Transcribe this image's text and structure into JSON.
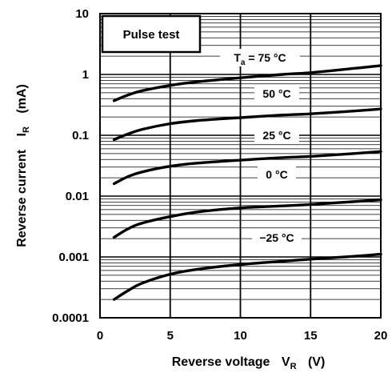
{
  "chart_data": {
    "type": "line",
    "xlabel": "Reverse voltage",
    "xlabel_symbol": "V",
    "xlabel_sub": "R",
    "xlabel_unit": "(V)",
    "ylabel": "Reverse current",
    "ylabel_symbol": "I",
    "ylabel_sub": "R",
    "ylabel_unit": "(mA)",
    "xlim": [
      0,
      20
    ],
    "ylim": [
      0.0001,
      10
    ],
    "yscale": "log",
    "x_ticks": [
      "0",
      "5",
      "10",
      "15",
      "20"
    ],
    "y_ticks": [
      "0.0001",
      "0.001",
      "0.01",
      "0.1",
      "1",
      "10"
    ],
    "annotation": "Pulse test",
    "grid": true,
    "series": [
      {
        "name": "Ta = 75 °C",
        "label_main": "T",
        "label_sub": "a",
        "label_rest": " = 75 °C",
        "x": [
          1,
          2,
          3,
          5,
          7,
          10,
          13,
          15,
          18,
          20
        ],
        "y": [
          0.37,
          0.46,
          0.54,
          0.66,
          0.76,
          0.88,
          1.0,
          1.07,
          1.25,
          1.4
        ]
      },
      {
        "name": "50 °C",
        "label_main": "50 °C",
        "x": [
          1,
          2,
          3,
          5,
          7,
          10,
          13,
          15,
          18,
          20
        ],
        "y": [
          0.085,
          0.105,
          0.125,
          0.155,
          0.175,
          0.195,
          0.215,
          0.225,
          0.25,
          0.27
        ]
      },
      {
        "name": "25 °C",
        "label_main": "25 °C",
        "x": [
          1,
          2,
          3,
          5,
          7,
          10,
          13,
          15,
          18,
          20
        ],
        "y": [
          0.016,
          0.021,
          0.025,
          0.031,
          0.035,
          0.039,
          0.043,
          0.045,
          0.05,
          0.054
        ]
      },
      {
        "name": "0 °C",
        "label_main": "0 °C",
        "x": [
          1,
          2,
          3,
          5,
          7,
          10,
          13,
          15,
          18,
          20
        ],
        "y": [
          0.0021,
          0.0029,
          0.0036,
          0.0046,
          0.0055,
          0.0064,
          0.0069,
          0.0073,
          0.0081,
          0.0087
        ]
      },
      {
        "name": "−25 °C",
        "label_main": "−25 °C",
        "x": [
          1,
          2,
          3,
          5,
          7,
          10,
          13,
          15,
          18,
          20
        ],
        "y": [
          0.0002,
          0.00028,
          0.00037,
          0.00052,
          0.00063,
          0.00075,
          0.00085,
          0.00092,
          0.00102,
          0.00111
        ]
      }
    ]
  },
  "colors": {
    "line": "#000000",
    "grid": "#000000",
    "background": "#ffffff"
  }
}
